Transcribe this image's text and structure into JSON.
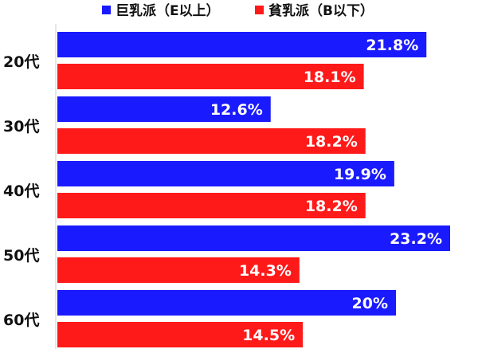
{
  "chart_data": {
    "type": "bar",
    "orientation": "horizontal",
    "categories": [
      "20代",
      "30代",
      "40代",
      "50代",
      "60代"
    ],
    "series": [
      {
        "name": "巨乳派（E以上）",
        "color": "#1a1aff",
        "values": [
          21.8,
          12.6,
          19.9,
          23.2,
          20
        ],
        "labels": [
          "21.8%",
          "12.6%",
          "19.9%",
          "23.2%",
          "20%"
        ]
      },
      {
        "name": "貧乳派（B以下）",
        "color": "#ff1a1a",
        "values": [
          18.1,
          18.2,
          18.2,
          14.3,
          14.5
        ],
        "labels": [
          "18.1%",
          "18.2%",
          "18.2%",
          "14.3%",
          "14.5%"
        ]
      }
    ],
    "xlim": [
      0,
      24
    ],
    "grid": false,
    "legend": "top"
  }
}
